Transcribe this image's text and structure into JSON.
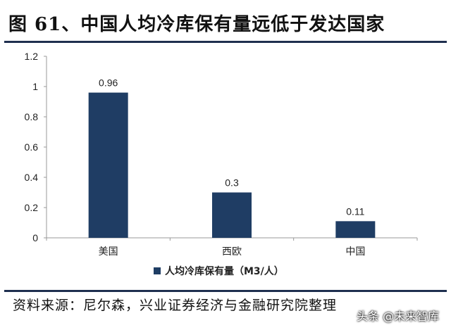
{
  "figure": {
    "title": "图 61、中国人均冷库保有量远低于发达国家",
    "source": "资料来源：尼尔森，兴业证券经济与金融研究院整理",
    "watermark": "头条 @未来智库"
  },
  "chart_data": {
    "type": "bar",
    "categories": [
      "美国",
      "西欧",
      "中国"
    ],
    "series": [
      {
        "name": "人均冷库保有量（M3/人）",
        "values": [
          0.96,
          0.3,
          0.11
        ],
        "color": "#1f3d64"
      }
    ],
    "data_labels": [
      "0.96",
      "0.3",
      "0.11"
    ],
    "y_ticks": [
      "0",
      "0.2",
      "0.4",
      "0.6",
      "0.8",
      "1",
      "1.2"
    ],
    "ylim": [
      0,
      1.2
    ],
    "grid": false,
    "legend_position": "bottom"
  }
}
